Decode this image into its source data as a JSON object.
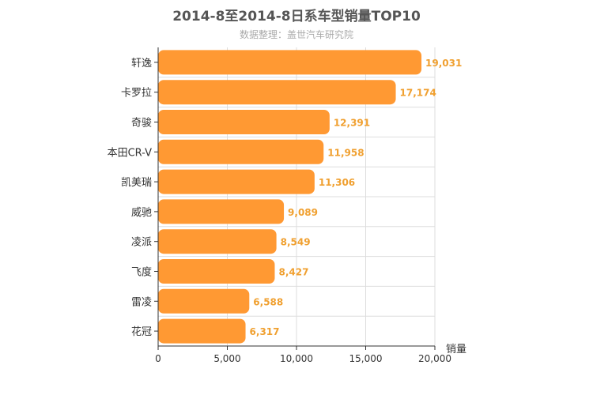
{
  "chart_data": {
    "type": "bar",
    "orientation": "horizontal",
    "title": "2014-8至2014-8日系车型销量TOP10",
    "subtitle": "数据整理：盖世汽车研究院",
    "xlabel": "销量",
    "ylabel": "",
    "xlim": [
      0,
      20000
    ],
    "xticks": [
      "0",
      "5,000",
      "10,000",
      "15,000",
      "20,000"
    ],
    "categories": [
      "轩逸",
      "卡罗拉",
      "奇骏",
      "本田CR-V",
      "凯美瑞",
      "威驰",
      "凌派",
      "飞度",
      "雷凌",
      "花冠"
    ],
    "values": [
      19031,
      17174,
      12391,
      11958,
      11306,
      9089,
      8549,
      8427,
      6588,
      6317
    ],
    "value_labels": [
      "19,031",
      "17,174",
      "12,391",
      "11,958",
      "11,306",
      "9,089",
      "8,549",
      "8,427",
      "6,588",
      "6,317"
    ],
    "bar_color": "#ff9933",
    "label_color": "#f0a030",
    "grid": true
  }
}
